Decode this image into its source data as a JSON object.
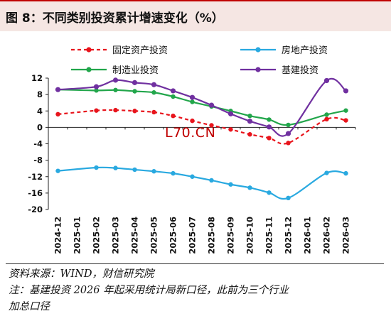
{
  "title": "图 8：不同类别投资累计增速变化（%）",
  "watermark": "L70.CN",
  "notes": [
    "资料来源：WIND，财信研究院",
    "注：基建投资 2026 年起采用统计局新口径，此前为三个行业",
    "加总口径"
  ],
  "colors": {
    "fixed_asset": "#e8141c",
    "real_estate": "#29a9e0",
    "manufacturing": "#22a64b",
    "infrastructure": "#7030a0",
    "title_band": "#f5e6e3",
    "title_rule": "#c00000"
  },
  "chart_data": {
    "type": "line",
    "title": "不同类别投资累计增速变化（%）",
    "xlabel": "",
    "ylabel": "",
    "ylim": [
      -20,
      12
    ],
    "yticks": [
      12,
      8,
      4,
      0,
      -4,
      -8,
      -12,
      -16,
      -20
    ],
    "categories": [
      "2024-12",
      "2025-01",
      "2025-02",
      "2025-03",
      "2025-04",
      "2025-05",
      "2025-06",
      "2025-07",
      "2025-08",
      "2025-09",
      "2025-10",
      "2025-11",
      "2025-12",
      "2026-01",
      "2026-02",
      "2026-03"
    ],
    "legend_position": "top",
    "series": [
      {
        "name": "固定资产投资",
        "style": "dashed",
        "color": "#e8141c",
        "values": [
          3.2,
          null,
          4.1,
          4.2,
          4.0,
          3.7,
          2.8,
          1.6,
          0.5,
          -0.5,
          -1.7,
          -2.6,
          -3.8,
          null,
          2.0,
          1.7
        ]
      },
      {
        "name": "房地产投资",
        "style": "solid",
        "color": "#29a9e0",
        "values": [
          -10.6,
          null,
          -9.8,
          -9.9,
          -10.3,
          -10.7,
          -11.2,
          -12.0,
          -12.9,
          -13.9,
          -14.7,
          -15.9,
          -17.2,
          null,
          -11.1,
          -11.2
        ]
      },
      {
        "name": "制造业投资",
        "style": "solid",
        "color": "#22a64b",
        "values": [
          9.2,
          null,
          9.0,
          9.1,
          8.8,
          8.5,
          7.5,
          6.2,
          5.1,
          4.0,
          2.8,
          1.9,
          0.6,
          null,
          3.1,
          4.1
        ]
      },
      {
        "name": "基建投资",
        "style": "solid",
        "color": "#7030a0",
        "values": [
          9.2,
          null,
          9.9,
          11.5,
          10.9,
          10.4,
          8.9,
          7.3,
          5.4,
          3.3,
          1.5,
          0.1,
          -1.5,
          null,
          11.4,
          8.9
        ]
      }
    ]
  }
}
